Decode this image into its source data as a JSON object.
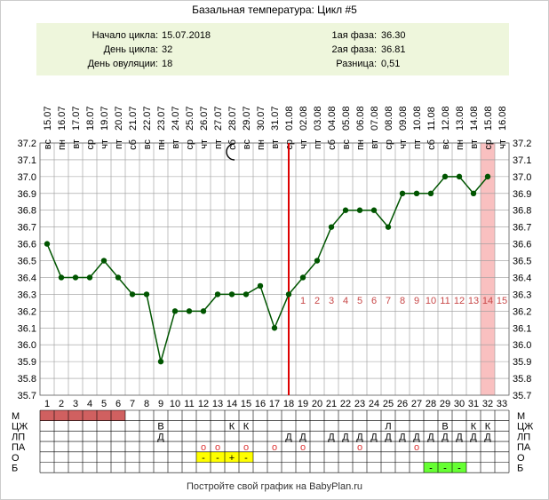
{
  "title": "Базальная температура: Цикл #5",
  "info": {
    "left": [
      {
        "label": "Начало цикла:",
        "value": "15.07.2018"
      },
      {
        "label": "День цикла:",
        "value": "32"
      },
      {
        "label": "День овуляции:",
        "value": "18"
      }
    ],
    "right": [
      {
        "label": "1ая фаза:",
        "value": "36.30"
      },
      {
        "label": "2ая фаза:",
        "value": "36.81"
      },
      {
        "label": "Разница:",
        "value": "0,51"
      }
    ]
  },
  "footer": "Постройте свой график на BabyPlan.ru",
  "colors": {
    "line": "#005500",
    "ovulation": "#dd0000",
    "highlight": "#f9c0c0",
    "menses": "#d06060",
    "phase_numbers": "#c84848",
    "yellow": "#ffff00",
    "green": "#66ff33",
    "grid": "#999999"
  },
  "icons": {
    "moon": "moon-icon"
  },
  "chart_data": {
    "type": "line",
    "x": [
      1,
      2,
      3,
      4,
      5,
      6,
      7,
      8,
      9,
      10,
      11,
      12,
      13,
      14,
      15,
      16,
      17,
      18,
      19,
      20,
      21,
      22,
      23,
      24,
      25,
      26,
      27,
      28,
      29,
      30,
      31,
      32
    ],
    "y": [
      36.6,
      36.4,
      36.4,
      36.4,
      36.5,
      36.4,
      36.3,
      36.3,
      35.9,
      36.2,
      36.2,
      36.2,
      36.3,
      36.3,
      36.3,
      36.35,
      36.1,
      36.3,
      36.4,
      36.5,
      36.7,
      36.8,
      36.8,
      36.8,
      36.7,
      36.9,
      36.9,
      36.9,
      37.0,
      37.0,
      36.9,
      37.0
    ],
    "ylim": [
      35.7,
      37.2
    ],
    "y_ticks": [
      "35.7",
      "35.8",
      "35.9",
      "36.0",
      "36.1",
      "36.2",
      "36.3",
      "36.4",
      "36.5",
      "36.6",
      "36.7",
      "36.8",
      "36.9",
      "37.0",
      "37.1",
      "37.2"
    ],
    "x_tick_labels": [
      "1",
      "2",
      "3",
      "4",
      "5",
      "6",
      "7",
      "8",
      "9",
      "10",
      "11",
      "12",
      "13",
      "14",
      "15",
      "16",
      "17",
      "18",
      "19",
      "20",
      "21",
      "22",
      "23",
      "24",
      "25",
      "26",
      "27",
      "28",
      "29",
      "30",
      "31",
      "32",
      "33"
    ],
    "dates": [
      "15.07",
      "16.07",
      "17.07",
      "18.07",
      "19.07",
      "20.07",
      "21.07",
      "22.07",
      "23.07",
      "24.07",
      "25.07",
      "26.07",
      "27.07",
      "28.07",
      "29.07",
      "30.07",
      "31.07",
      "01.08",
      "02.08",
      "03.08",
      "04.08",
      "05.08",
      "06.08",
      "07.08",
      "08.08",
      "09.08",
      "10.08",
      "11.08",
      "12.08",
      "13.08",
      "14.08",
      "15.08",
      "16.08"
    ],
    "weekdays": [
      "вс",
      "пн",
      "вт",
      "ср",
      "чт",
      "пт",
      "сб",
      "вс",
      "пн",
      "вт",
      "ср",
      "чт",
      "пт",
      "сб",
      "вс",
      "пн",
      "вт",
      "ср",
      "чт",
      "пт",
      "сб",
      "вс",
      "пн",
      "вт",
      "ср",
      "чт",
      "пт",
      "сб",
      "вс",
      "пн",
      "вт",
      "ср",
      "чт"
    ],
    "ovulation_day": 18,
    "highlight_day": 32,
    "moon_day": 14,
    "phase_numbers": [
      "1",
      "2",
      "3",
      "4",
      "5",
      "6",
      "7",
      "8",
      "9",
      "10",
      "11",
      "12",
      "13",
      "14",
      "15"
    ],
    "phase_start_day": 19,
    "grid": true
  },
  "table": {
    "row_labels": [
      "М",
      "ЦЖ",
      "ЛП",
      "ПА",
      "О",
      "Б"
    ],
    "menses_days": [
      1,
      2,
      3,
      4,
      5,
      6
    ],
    "cells": [
      {
        "row": 1,
        "day": 9,
        "text": "В"
      },
      {
        "row": 1,
        "day": 14,
        "text": "К"
      },
      {
        "row": 1,
        "day": 15,
        "text": "К"
      },
      {
        "row": 1,
        "day": 25,
        "text": "Л"
      },
      {
        "row": 1,
        "day": 29,
        "text": "В"
      },
      {
        "row": 1,
        "day": 31,
        "text": "К"
      },
      {
        "row": 1,
        "day": 32,
        "text": "К"
      },
      {
        "row": 2,
        "day": 9,
        "text": "Д"
      },
      {
        "row": 2,
        "day": 18,
        "text": "Д"
      },
      {
        "row": 2,
        "day": 19,
        "text": "Д"
      },
      {
        "row": 2,
        "day": 21,
        "text": "Д"
      },
      {
        "row": 2,
        "day": 22,
        "text": "Д"
      },
      {
        "row": 2,
        "day": 23,
        "text": "Д"
      },
      {
        "row": 2,
        "day": 24,
        "text": "Д"
      },
      {
        "row": 2,
        "day": 25,
        "text": "Д"
      },
      {
        "row": 2,
        "day": 26,
        "text": "Д"
      },
      {
        "row": 2,
        "day": 27,
        "text": "Д"
      },
      {
        "row": 2,
        "day": 28,
        "text": "Д"
      },
      {
        "row": 2,
        "day": 29,
        "text": "Д"
      },
      {
        "row": 2,
        "day": 30,
        "text": "Д"
      },
      {
        "row": 2,
        "day": 31,
        "text": "Д"
      },
      {
        "row": 2,
        "day": 32,
        "text": "Д"
      },
      {
        "row": 3,
        "day": 12,
        "text": "о"
      },
      {
        "row": 3,
        "day": 13,
        "text": "о"
      },
      {
        "row": 3,
        "day": 15,
        "text": "о"
      },
      {
        "row": 3,
        "day": 17,
        "text": "о"
      },
      {
        "row": 3,
        "day": 19,
        "text": "о"
      },
      {
        "row": 3,
        "day": 23,
        "text": "о"
      },
      {
        "row": 3,
        "day": 27,
        "text": "о"
      },
      {
        "row": 4,
        "day": 12,
        "text": "-",
        "fill": "yellow"
      },
      {
        "row": 4,
        "day": 13,
        "text": "-",
        "fill": "yellow"
      },
      {
        "row": 4,
        "day": 14,
        "text": "+",
        "fill": "yellow"
      },
      {
        "row": 4,
        "day": 15,
        "text": "-",
        "fill": "yellow"
      },
      {
        "row": 5,
        "day": 28,
        "text": "-",
        "fill": "green"
      },
      {
        "row": 5,
        "day": 29,
        "text": "-",
        "fill": "green"
      },
      {
        "row": 5,
        "day": 30,
        "text": "-",
        "fill": "green"
      }
    ]
  }
}
